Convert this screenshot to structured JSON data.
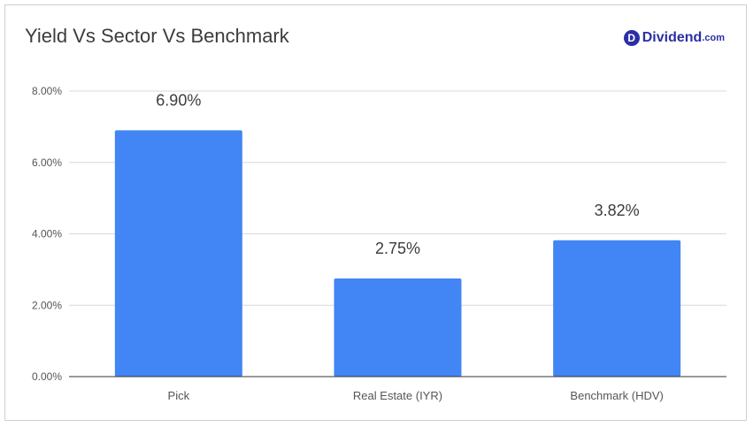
{
  "header": {
    "title": "Yield Vs Sector Vs Benchmark",
    "brand": {
      "badge": "D",
      "name": "Dividend",
      "tld": ".com"
    }
  },
  "colors": {
    "bar": "#4285f4",
    "grid": "#d9d9d9",
    "axis": "#333333"
  },
  "chart_data": {
    "type": "bar",
    "title": "Yield Vs Sector Vs Benchmark",
    "categories": [
      "Pick",
      "Real Estate (IYR)",
      "Benchmark (HDV)"
    ],
    "values": [
      6.9,
      2.75,
      3.82
    ],
    "data_labels": [
      "6.90%",
      "2.75%",
      "3.82%"
    ],
    "ylim": [
      0,
      8
    ],
    "yticks": [
      0,
      2,
      4,
      6,
      8
    ],
    "ytick_labels": [
      "0.00%",
      "2.00%",
      "4.00%",
      "6.00%",
      "8.00%"
    ],
    "xlabel": "",
    "ylabel": "",
    "grid": true,
    "legend": "none"
  }
}
